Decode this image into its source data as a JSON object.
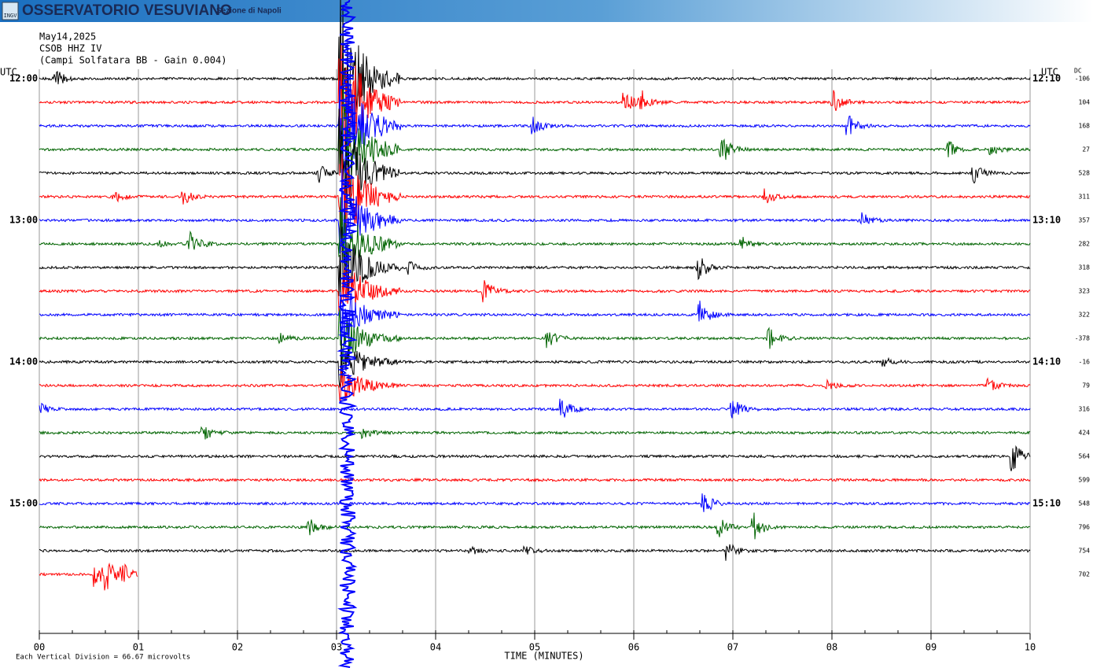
{
  "header": {
    "title": "OSSERVATORIO VESUVIANO",
    "subtitle": "Sezione di Napoli",
    "logo": "INGV"
  },
  "chart_data": {
    "type": "helicorder",
    "title": "May14,2025",
    "station": "CSOB HHZ IV",
    "description": "(Campi Solfatara BB  - Gain 0.004)",
    "left_unit": "UTC",
    "right_unit": "UTC",
    "dc_label": "DC",
    "xlabel": "TIME (MINUTES)",
    "xlim": [
      0,
      10
    ],
    "xticks": [
      {
        "value": 0,
        "label": "00"
      },
      {
        "value": 1,
        "label": "01"
      },
      {
        "value": 2,
        "label": "02"
      },
      {
        "value": 3,
        "label": "03"
      },
      {
        "value": 4,
        "label": "04"
      },
      {
        "value": 5,
        "label": "05"
      },
      {
        "value": 6,
        "label": "06"
      },
      {
        "value": 7,
        "label": "07"
      },
      {
        "value": 8,
        "label": "08"
      },
      {
        "value": 9,
        "label": "09"
      },
      {
        "value": 10,
        "label": "10"
      }
    ],
    "colors": [
      "#000000",
      "#ff0000",
      "#0000ff",
      "#006400"
    ],
    "rows": [
      {
        "left": "12:00",
        "right": "12:10",
        "dc": -106
      },
      {
        "dc": 104
      },
      {
        "dc": 168
      },
      {
        "dc": 27
      },
      {
        "dc": 528
      },
      {
        "dc": 311
      },
      {
        "left": "13:00",
        "right": "13:10",
        "dc": 357
      },
      {
        "dc": 282
      },
      {
        "dc": 318
      },
      {
        "dc": 323
      },
      {
        "dc": 322
      },
      {
        "dc": -378
      },
      {
        "left": "14:00",
        "right": "14:10",
        "dc": -16
      },
      {
        "dc": 79
      },
      {
        "dc": 316
      },
      {
        "dc": 424
      },
      {
        "dc": 564
      },
      {
        "dc": 599
      },
      {
        "left": "15:00",
        "right": "15:10",
        "dc": 548
      },
      {
        "dc": 796
      },
      {
        "dc": 754
      },
      {
        "dc": 702
      }
    ],
    "footnote": "Each Vertical Division =   66.67 microvolts"
  }
}
